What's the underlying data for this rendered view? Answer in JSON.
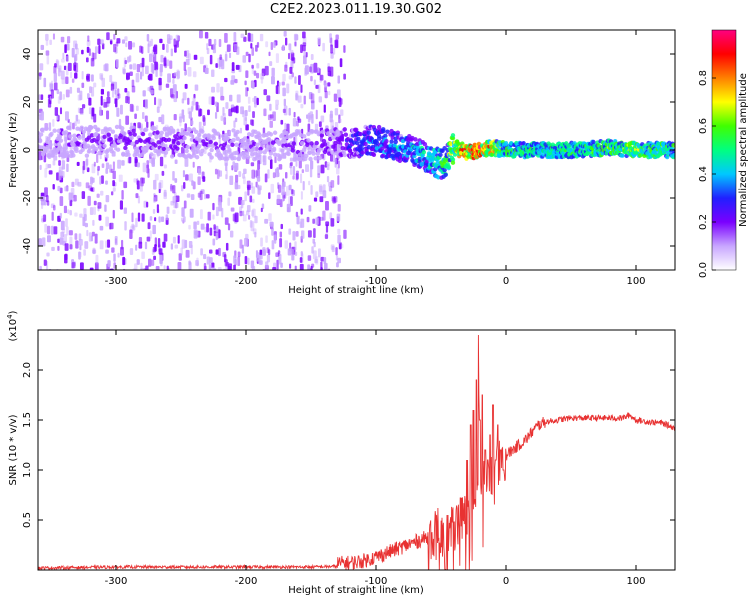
{
  "title": "C2E2.2023.011.19.30.G02",
  "chart_data": [
    {
      "type": "heatmap",
      "title": "",
      "xlabel": "Height of straight line (km)",
      "ylabel": "Frequency (Hz)",
      "xlim": [
        -360,
        130
      ],
      "ylim": [
        -50,
        50
      ],
      "xticks": [
        -300,
        -200,
        -100,
        0,
        100
      ],
      "xtick_labels": [
        "-300",
        "-200",
        "-100",
        "0",
        "100"
      ],
      "yticks": [
        -40,
        -20,
        0,
        20,
        40
      ],
      "ytick_labels": [
        "-40",
        "-20",
        "0",
        "20",
        "40"
      ],
      "colorbar": {
        "label": "Normalized spectral amplitude",
        "range": [
          0,
          1
        ],
        "ticks": [
          0.0,
          0.2,
          0.4,
          0.6,
          0.8
        ],
        "tick_labels": [
          "0.0",
          "0.2",
          "0.4",
          "0.6",
          "0.8"
        ],
        "colormap": [
          "#ffffff",
          "#c8a6ff",
          "#7a00ff",
          "#2020ff",
          "#00c8ff",
          "#00ff80",
          "#40ff00",
          "#ffff00",
          "#ff8000",
          "#ff0000",
          "#ff0080"
        ]
      },
      "ridge": {
        "x": [
          -360,
          -300,
          -250,
          -200,
          -150,
          -120,
          -100,
          -80,
          -60,
          -50,
          -45,
          -40,
          -30,
          -20,
          -10,
          0,
          20,
          50,
          80,
          100,
          130
        ],
        "freq": [
          3,
          4,
          3,
          2,
          2,
          3,
          4,
          1,
          -3,
          -6,
          -4,
          1,
          -1,
          0,
          1,
          0,
          0,
          0,
          1,
          0,
          0
        ],
        "amplitude": [
          0.15,
          0.2,
          0.2,
          0.15,
          0.2,
          0.3,
          0.35,
          0.4,
          0.45,
          0.5,
          0.55,
          0.7,
          0.8,
          0.85,
          0.7,
          0.5,
          0.5,
          0.5,
          0.55,
          0.6,
          0.5
        ]
      },
      "grid": false
    },
    {
      "type": "line",
      "title": "",
      "xlabel": "Height of straight line (km)",
      "ylabel": "SNR (10 * v/v)",
      "y_multiplier_label": "(x10",
      "y_multiplier_exp": "4",
      "y_multiplier_close": ")",
      "xlim": [
        -360,
        130
      ],
      "ylim": [
        0,
        2.4
      ],
      "xticks": [
        -300,
        -200,
        -100,
        0,
        100
      ],
      "xtick_labels": [
        "-300",
        "-200",
        "-100",
        "0",
        "100"
      ],
      "yticks": [
        0.5,
        1.0,
        1.5,
        2.0
      ],
      "ytick_labels": [
        "0.5",
        "1.0",
        "1.5",
        "2.0"
      ],
      "series": [
        {
          "color": "#e83232",
          "x": [
            -360,
            -300,
            -250,
            -200,
            -150,
            -120,
            -110,
            -100,
            -90,
            -80,
            -70,
            -60,
            -55,
            -50,
            -45,
            -40,
            -35,
            -30,
            -25,
            -22,
            -20,
            -18,
            -15,
            -10,
            -5,
            0,
            5,
            10,
            15,
            20,
            25,
            30,
            40,
            50,
            60,
            70,
            80,
            90,
            95,
            100,
            110,
            120,
            130
          ],
          "y": [
            0.02,
            0.03,
            0.03,
            0.03,
            0.03,
            0.04,
            0.06,
            0.1,
            0.15,
            0.2,
            0.25,
            0.3,
            0.35,
            0.3,
            0.35,
            0.4,
            0.5,
            0.55,
            0.7,
            0.75,
            0.85,
            0.9,
            0.95,
            1.0,
            1.05,
            1.15,
            1.2,
            1.25,
            1.3,
            1.38,
            1.45,
            1.48,
            1.5,
            1.52,
            1.52,
            1.52,
            1.52,
            1.52,
            1.55,
            1.5,
            1.48,
            1.47,
            1.42
          ],
          "peaks": {
            "x": [
              -60,
              -52,
              -45,
              -40,
              -35,
              -30,
              -27,
              -25,
              -23,
              -21,
              -20,
              -18,
              -16,
              -14,
              -12,
              -10,
              -8,
              -6,
              -4,
              -2
            ],
            "y": [
              0.5,
              0.62,
              0.55,
              0.48,
              0.72,
              1.1,
              1.45,
              1.6,
              1.9,
              2.35,
              1.5,
              1.75,
              1.2,
              1.1,
              1.35,
              1.65,
              1.1,
              1.45,
              1.2,
              1.0
            ]
          }
        }
      ],
      "grid": false
    }
  ]
}
